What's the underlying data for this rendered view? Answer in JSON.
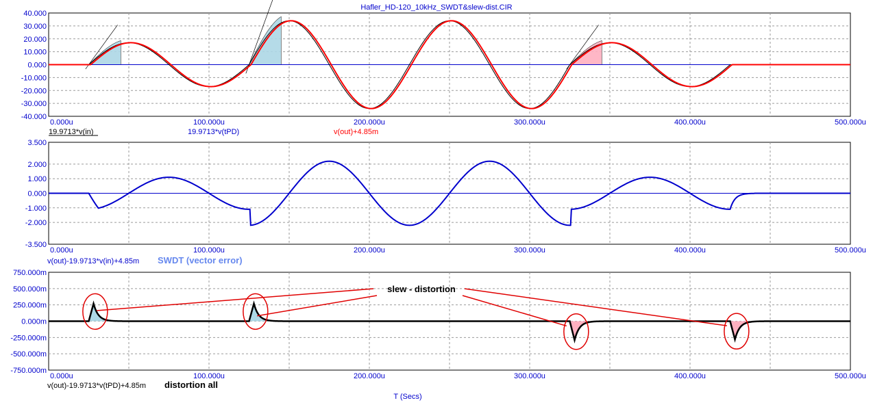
{
  "window": {
    "title": "Hafler_HD-120_10kHz_SWDT&slew-dist.CIR"
  },
  "colors": {
    "axis_text": "#0000cc",
    "grid": "#9a9a9a",
    "blue": "#0000cc",
    "red": "#ff0000",
    "black": "#000000",
    "light_blue": "#add8e6",
    "pink": "#ffb0c0",
    "annotation_red": "#e00000",
    "swdt_label": "#6688ee"
  },
  "chart_data": [
    {
      "type": "line",
      "panel": "top",
      "xlim": [
        0,
        500
      ],
      "ylim": [
        -40,
        40
      ],
      "x_unit": "u",
      "x_ticks": [
        "0.000u",
        "100.000u",
        "200.000u",
        "300.000u",
        "400.000u",
        "500.000u"
      ],
      "y_ticks": [
        "40.000",
        "30.000",
        "20.000",
        "10.000",
        "0.000",
        "-10.000",
        "-20.000",
        "-30.000",
        "-40.000"
      ],
      "series": [
        {
          "name": "19.9713*v(in)",
          "color": "#000000"
        },
        {
          "name": "19.9713*v(tPD)",
          "color": "#0000cc"
        },
        {
          "name": "v(out)+4.85m",
          "color": "#ff0000"
        }
      ],
      "signal_start": 25,
      "signal_end": 425,
      "frequency_khz": 10,
      "amplitude_low": 17,
      "amplitude_high": 34,
      "burst_low_cycles": [
        [
          25,
          125
        ],
        [
          325,
          425
        ]
      ],
      "burst_high_cycles": [
        [
          125,
          325
        ]
      ],
      "highlights": [
        {
          "x_start": 25,
          "x_end": 45,
          "color": "light_blue"
        },
        {
          "x_start": 125,
          "x_end": 145,
          "color": "light_blue"
        },
        {
          "x_start": 325,
          "x_end": 345,
          "color": "pink"
        },
        {
          "x_start": 425,
          "x_end": 445,
          "color": "pink"
        }
      ]
    },
    {
      "type": "line",
      "panel": "middle",
      "xlim": [
        0,
        500
      ],
      "ylim": [
        -3.5,
        3.5
      ],
      "x_ticks": [
        "0.000u",
        "100.000u",
        "200.000u",
        "300.000u",
        "400.000u",
        "500.000u"
      ],
      "y_ticks": [
        "3.500",
        "2.000",
        "1.000",
        "0.000",
        "-1.000",
        "-2.000",
        "-3.500"
      ],
      "series": [
        {
          "name": "v(out)-19.9713*v(in)+4.85m",
          "color": "#0000cc"
        }
      ],
      "label": "SWDT (vector error)",
      "error_amplitude_low": 1.1,
      "error_amplitude_high": 2.2
    },
    {
      "type": "line",
      "panel": "bottom",
      "xlim": [
        0,
        500
      ],
      "ylim": [
        -750,
        750
      ],
      "y_unit": "m",
      "x_ticks": [
        "0.000u",
        "100.000u",
        "200.000u",
        "300.000u",
        "400.000u",
        "500.000u"
      ],
      "y_ticks": [
        "750.000m",
        "500.000m",
        "250.000m",
        "0.000m",
        "-250.000m",
        "-500.000m",
        "-750.000m"
      ],
      "series": [
        {
          "name": "v(out)-19.9713*v(tPD)+4.85m",
          "color": "#000000"
        }
      ],
      "label": "distortion all",
      "xlabel": "T (Secs)",
      "spikes": [
        {
          "x": 25,
          "peak": 270,
          "color": "light_blue"
        },
        {
          "x": 125,
          "peak": 270,
          "color": "light_blue"
        },
        {
          "x": 325,
          "peak": -290,
          "color": "pink"
        },
        {
          "x": 425,
          "peak": -280,
          "color": "pink"
        }
      ],
      "annotation": {
        "text": "slew - distortion"
      }
    }
  ]
}
